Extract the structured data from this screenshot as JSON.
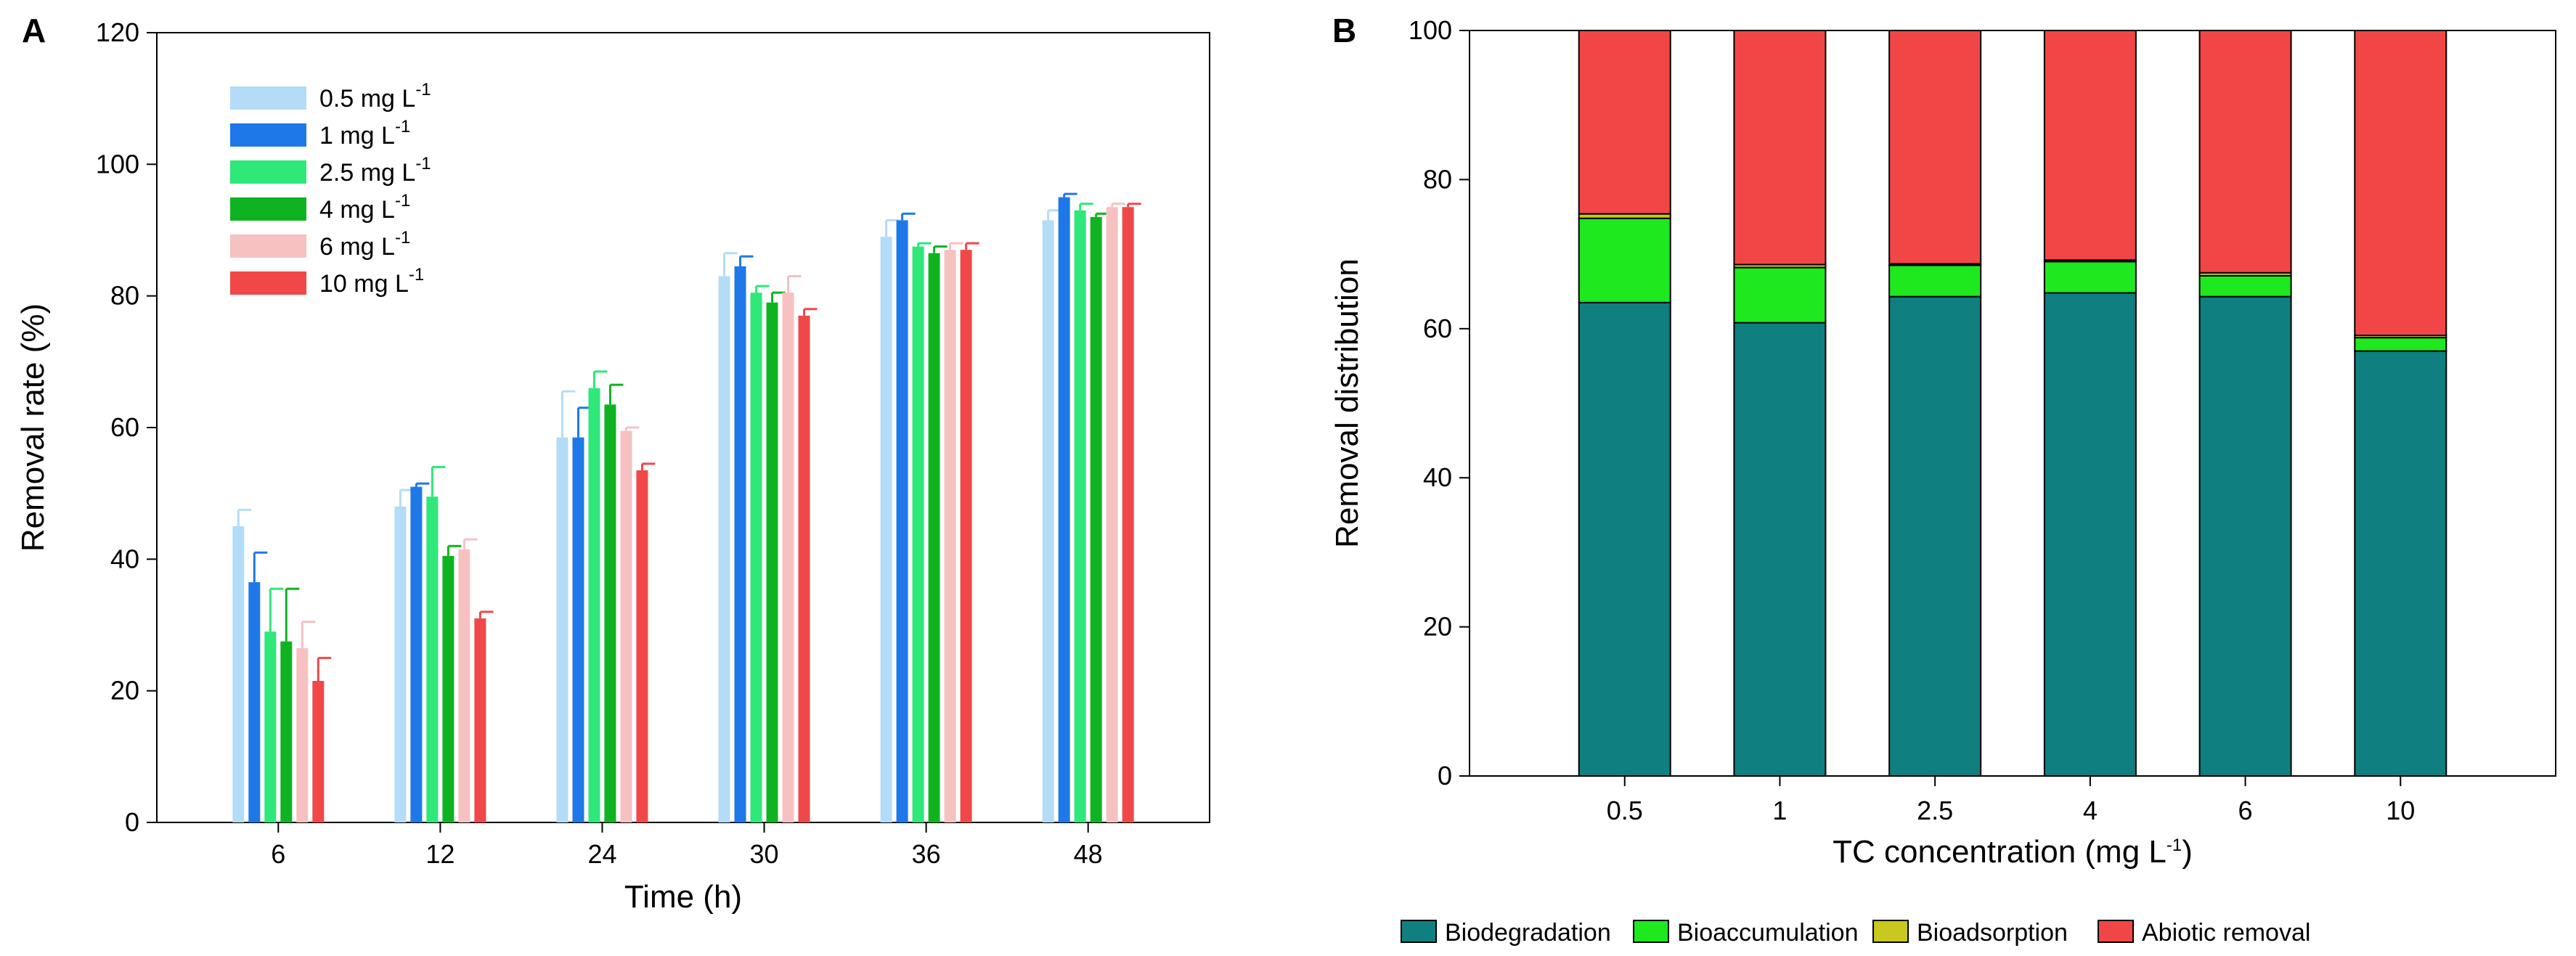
{
  "chart_data": [
    {
      "panel": "A",
      "type": "bar",
      "xlabel": "Time (h)",
      "ylabel": "Removal rate (%)",
      "ylim": [
        0,
        120
      ],
      "yticks": [
        0,
        20,
        40,
        60,
        80,
        100,
        120
      ],
      "categories": [
        "6",
        "12",
        "24",
        "30",
        "36",
        "48"
      ],
      "legend_position": "top-left",
      "series": [
        {
          "name": "0.5 mg L",
          "sup": "-1",
          "color": "#b3dcf7",
          "values": [
            45.0,
            48.0,
            58.5,
            83.0,
            89.0,
            91.5
          ],
          "errors": [
            2.5,
            2.5,
            7.0,
            3.5,
            2.5,
            1.5
          ]
        },
        {
          "name": "1 mg L",
          "sup": "-1",
          "color": "#1e78e8",
          "values": [
            36.5,
            51.0,
            58.5,
            84.5,
            91.5,
            95.0
          ],
          "errors": [
            4.5,
            0.5,
            4.5,
            1.5,
            1.0,
            0.5
          ]
        },
        {
          "name": "2.5 mg L",
          "sup": "-1",
          "color": "#2ee87a",
          "values": [
            29.0,
            49.5,
            66.0,
            80.5,
            87.5,
            93.0
          ],
          "errors": [
            6.5,
            4.5,
            2.5,
            1.0,
            0.5,
            1.0
          ]
        },
        {
          "name": "4 mg L",
          "sup": "-1",
          "color": "#0fb321",
          "values": [
            27.5,
            40.5,
            63.5,
            79.0,
            86.5,
            92.0
          ],
          "errors": [
            8.0,
            1.5,
            3.0,
            1.5,
            1.0,
            0.5
          ]
        },
        {
          "name": "6 mg L",
          "sup": "-1",
          "color": "#f7c1c1",
          "values": [
            26.5,
            41.5,
            59.5,
            80.5,
            87.0,
            93.5
          ],
          "errors": [
            4.0,
            1.5,
            0.5,
            2.5,
            1.0,
            0.5
          ]
        },
        {
          "name": "10 mg L",
          "sup": "-1",
          "color": "#f04848",
          "values": [
            21.5,
            31.0,
            53.5,
            77.0,
            87.0,
            93.5
          ],
          "errors": [
            3.5,
            1.0,
            1.0,
            1.0,
            1.0,
            0.5
          ]
        }
      ]
    },
    {
      "panel": "B",
      "type": "bar",
      "stacked": true,
      "xlabel": "TC concentration (mg L",
      "xlabel_sup": "-1",
      "xlabel_tail": ")",
      "ylabel": "Removal distribution",
      "ylim": [
        0,
        100
      ],
      "yticks": [
        0,
        20,
        40,
        60,
        80,
        100
      ],
      "categories": [
        "0.5",
        "1",
        "2.5",
        "4",
        "6",
        "10"
      ],
      "legend_position": "bottom",
      "series": [
        {
          "name": "Biodegradation",
          "color": "#0f7f7f",
          "values": [
            63.5,
            60.8,
            64.3,
            64.8,
            64.3,
            57.0
          ]
        },
        {
          "name": "Bioaccumulation",
          "color": "#1ee81e",
          "values": [
            11.3,
            7.4,
            4.2,
            4.2,
            2.8,
            1.8
          ]
        },
        {
          "name": "Bioadsorption",
          "color": "#c8c81e",
          "values": [
            0.6,
            0.4,
            0.2,
            0.2,
            0.4,
            0.3
          ]
        },
        {
          "name": "Abiotic removal",
          "color": "#f24646",
          "values": [
            24.6,
            31.4,
            31.3,
            30.8,
            32.5,
            40.9
          ]
        }
      ]
    }
  ]
}
